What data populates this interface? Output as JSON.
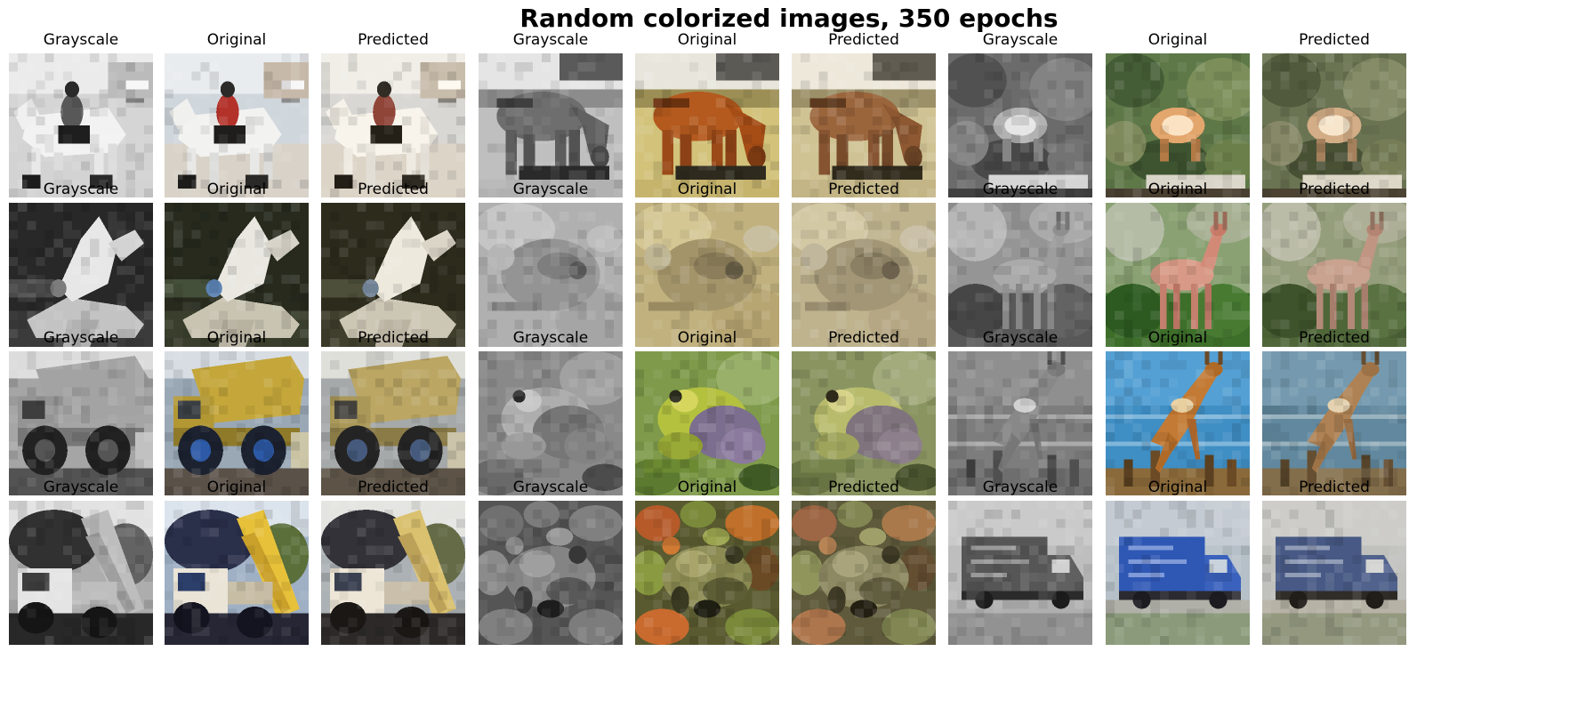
{
  "figure": {
    "title": "Random colorized images, 350 epochs"
  },
  "panels": [
    {
      "label": "Grayscale",
      "subject": "horse-rider",
      "mode": "gray"
    },
    {
      "label": "Original",
      "subject": "horse-rider",
      "mode": "orig"
    },
    {
      "label": "Predicted",
      "subject": "horse-rider",
      "mode": "pred"
    },
    {
      "label": "Grayscale",
      "subject": "horse",
      "mode": "gray"
    },
    {
      "label": "Original",
      "subject": "horse",
      "mode": "orig"
    },
    {
      "label": "Predicted",
      "subject": "horse",
      "mode": "pred"
    },
    {
      "label": "Grayscale",
      "subject": "deer-forest",
      "mode": "gray"
    },
    {
      "label": "Original",
      "subject": "deer-forest",
      "mode": "orig"
    },
    {
      "label": "Predicted",
      "subject": "deer-forest",
      "mode": "pred"
    },
    {
      "label": "Grayscale",
      "subject": "airplane",
      "mode": "gray"
    },
    {
      "label": "Original",
      "subject": "airplane",
      "mode": "orig"
    },
    {
      "label": "Predicted",
      "subject": "airplane",
      "mode": "pred"
    },
    {
      "label": "Grayscale",
      "subject": "frog-sand",
      "mode": "gray"
    },
    {
      "label": "Original",
      "subject": "frog-sand",
      "mode": "orig"
    },
    {
      "label": "Predicted",
      "subject": "frog-sand",
      "mode": "pred"
    },
    {
      "label": "Grayscale",
      "subject": "deer-standing",
      "mode": "gray"
    },
    {
      "label": "Original",
      "subject": "deer-standing",
      "mode": "orig"
    },
    {
      "label": "Predicted",
      "subject": "deer-standing",
      "mode": "pred"
    },
    {
      "label": "Grayscale",
      "subject": "dump-truck",
      "mode": "gray"
    },
    {
      "label": "Original",
      "subject": "dump-truck",
      "mode": "orig"
    },
    {
      "label": "Predicted",
      "subject": "dump-truck",
      "mode": "pred"
    },
    {
      "label": "Grayscale",
      "subject": "frog-green",
      "mode": "gray"
    },
    {
      "label": "Original",
      "subject": "frog-green",
      "mode": "orig"
    },
    {
      "label": "Predicted",
      "subject": "frog-green",
      "mode": "pred"
    },
    {
      "label": "Grayscale",
      "subject": "deer-jumping",
      "mode": "gray"
    },
    {
      "label": "Original",
      "subject": "deer-jumping",
      "mode": "orig"
    },
    {
      "label": "Predicted",
      "subject": "deer-jumping",
      "mode": "pred"
    },
    {
      "label": "Grayscale",
      "subject": "tipper-truck",
      "mode": "gray"
    },
    {
      "label": "Original",
      "subject": "tipper-truck",
      "mode": "orig"
    },
    {
      "label": "Predicted",
      "subject": "tipper-truck",
      "mode": "pred"
    },
    {
      "label": "Grayscale",
      "subject": "frog-leaves",
      "mode": "gray"
    },
    {
      "label": "Original",
      "subject": "frog-leaves",
      "mode": "orig"
    },
    {
      "label": "Predicted",
      "subject": "frog-leaves",
      "mode": "pred"
    },
    {
      "label": "Grayscale",
      "subject": "box-truck",
      "mode": "gray"
    },
    {
      "label": "Original",
      "subject": "box-truck",
      "mode": "orig"
    },
    {
      "label": "Predicted",
      "subject": "box-truck",
      "mode": "pred"
    }
  ]
}
